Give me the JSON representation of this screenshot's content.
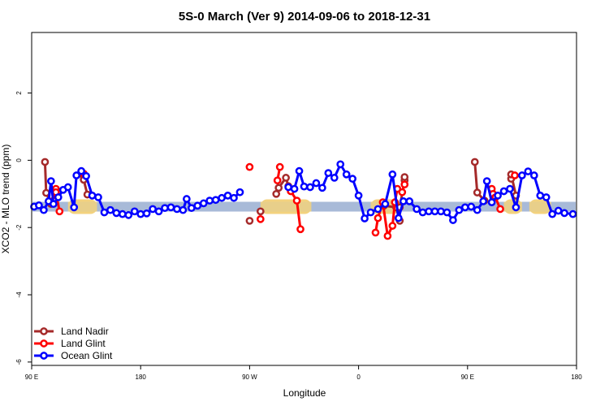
{
  "chart_data": {
    "type": "line",
    "title": "5S-0 March (Ver 9)   2014-09-06 to 2018-12-31",
    "xlabel": "Longitude",
    "ylabel": "XCO2 - MLO trend (ppm)",
    "x_ticks": [
      {
        "value": 90,
        "label": "90 E"
      },
      {
        "value": 180,
        "label": "180"
      },
      {
        "value": 270,
        "label": "90 W"
      },
      {
        "value": 360,
        "label": "0"
      },
      {
        "value": 450,
        "label": "90 E"
      },
      {
        "value": 540,
        "label": "180"
      }
    ],
    "y_ticks": [
      {
        "value": 2,
        "label": "2"
      },
      {
        "value": 0,
        "label": "0"
      },
      {
        "value": -2,
        "label": "-2"
      },
      {
        "value": -4,
        "label": "-4"
      },
      {
        "value": -6,
        "label": "-6"
      }
    ],
    "xlim": [
      90,
      540
    ],
    "ylim": [
      -6.1,
      3.8
    ],
    "grid": false,
    "legend_position": "bottom-left",
    "band": {
      "y": -1.38,
      "color": "#a3b6d6"
    },
    "land_bands": [
      {
        "x": [
          120,
          144
        ],
        "color": "#f3d27e"
      },
      {
        "x": [
          279,
          321
        ],
        "color": "#f3d27e"
      },
      {
        "x": [
          370,
          394
        ],
        "color": "#f3d27e"
      },
      {
        "x": [
          480,
          495
        ],
        "color": "#f3d27e"
      },
      {
        "x": [
          501,
          519
        ],
        "color": "#f3d27e"
      }
    ],
    "series": [
      {
        "name": "Land Nadir",
        "color": "#a52a2a",
        "segments": [
          [
            [
              101,
              -0.05
            ],
            [
              102,
              -0.97
            ],
            [
              106,
              -1.3
            ]
          ],
          [
            [
              133,
              -0.48
            ],
            [
              133,
              -0.58
            ],
            [
              136,
              -1.02
            ]
          ],
          [
            [
              270,
              -1.8
            ]
          ],
          [
            [
              279,
              -1.52
            ]
          ],
          [
            [
              292,
              -1.0
            ],
            [
              294,
              -0.82
            ],
            [
              300,
              -0.52
            ],
            [
              302,
              -0.77
            ]
          ],
          [
            [
              381,
              -1.35
            ],
            [
              391,
              -1.4
            ],
            [
              394,
              -1.8
            ],
            [
              394,
              -1.4
            ],
            [
              398,
              -0.6
            ],
            [
              398,
              -0.5
            ]
          ],
          [
            [
              456,
              -0.05
            ],
            [
              458,
              -0.96
            ],
            [
              464,
              -1.2
            ]
          ],
          [
            [
              486,
              -0.55
            ],
            [
              486,
              -0.42
            ],
            [
              490,
              -1.05
            ]
          ]
        ]
      },
      {
        "name": "Land Glint",
        "color": "#ff0000",
        "segments": [
          [
            [
              108,
              -1.2
            ],
            [
              110,
              -0.85
            ],
            [
              110,
              -0.95
            ],
            [
              113,
              -1.52
            ]
          ],
          [
            [
              133,
              -0.4
            ]
          ],
          [
            [
              270,
              -0.2
            ]
          ],
          [
            [
              279,
              -1.75
            ]
          ],
          [
            [
              293,
              -0.6
            ],
            [
              295,
              -0.2
            ]
          ],
          [
            [
              304,
              -0.92
            ],
            [
              309,
              -1.2
            ],
            [
              312,
              -2.05
            ]
          ],
          [
            [
              374,
              -2.15
            ],
            [
              376,
              -1.72
            ],
            [
              380,
              -1.25
            ],
            [
              384,
              -2.25
            ],
            [
              388,
              -1.95
            ],
            [
              390,
              -1.25
            ],
            [
              392,
              -0.85
            ],
            [
              396,
              -0.95
            ],
            [
              398,
              -0.72
            ]
          ],
          [
            [
              470,
              -0.85
            ],
            [
              471,
              -1.0
            ],
            [
              473,
              -1.1
            ],
            [
              477,
              -1.45
            ]
          ],
          [
            [
              489,
              -0.45
            ]
          ]
        ]
      },
      {
        "name": "Ocean Glint",
        "color": "#0000ff",
        "segments": [
          [
            [
              92,
              -1.38
            ],
            [
              96,
              -1.34
            ],
            [
              100,
              -1.48
            ],
            [
              104,
              -1.22
            ],
            [
              106,
              -0.62
            ],
            [
              108,
              -1.3
            ],
            [
              112,
              -1.1
            ],
            [
              116,
              -0.88
            ],
            [
              120,
              -0.8
            ],
            [
              125,
              -1.4
            ],
            [
              127,
              -0.45
            ],
            [
              131,
              -0.32
            ],
            [
              135,
              -0.47
            ],
            [
              140,
              -1.05
            ],
            [
              145,
              -1.1
            ],
            [
              150,
              -1.55
            ],
            [
              155,
              -1.48
            ],
            [
              160,
              -1.57
            ],
            [
              165,
              -1.6
            ],
            [
              170,
              -1.63
            ],
            [
              175,
              -1.52
            ],
            [
              180,
              -1.6
            ],
            [
              185,
              -1.58
            ],
            [
              190,
              -1.45
            ],
            [
              195,
              -1.52
            ],
            [
              200,
              -1.42
            ],
            [
              205,
              -1.4
            ],
            [
              210,
              -1.45
            ],
            [
              215,
              -1.48
            ],
            [
              218,
              -1.15
            ],
            [
              222,
              -1.42
            ],
            [
              227,
              -1.35
            ],
            [
              232,
              -1.28
            ],
            [
              237,
              -1.2
            ],
            [
              242,
              -1.18
            ],
            [
              247,
              -1.12
            ],
            [
              252,
              -1.05
            ],
            [
              257,
              -1.12
            ],
            [
              262,
              -0.95
            ]
          ],
          [
            [
              302,
              -0.8
            ],
            [
              307,
              -0.85
            ],
            [
              311,
              -0.32
            ],
            [
              315,
              -0.78
            ],
            [
              320,
              -0.8
            ],
            [
              325,
              -0.68
            ],
            [
              330,
              -0.82
            ],
            [
              335,
              -0.38
            ],
            [
              340,
              -0.52
            ],
            [
              345,
              -0.12
            ],
            [
              350,
              -0.42
            ],
            [
              355,
              -0.55
            ],
            [
              360,
              -1.05
            ],
            [
              365,
              -1.73
            ],
            [
              370,
              -1.55
            ],
            [
              376,
              -1.45
            ],
            [
              382,
              -1.3
            ],
            [
              388,
              -0.42
            ],
            [
              393,
              -1.72
            ],
            [
              397,
              -1.22
            ],
            [
              402,
              -1.22
            ],
            [
              408,
              -1.45
            ],
            [
              413,
              -1.55
            ],
            [
              418,
              -1.52
            ],
            [
              423,
              -1.52
            ],
            [
              428,
              -1.52
            ],
            [
              433,
              -1.55
            ],
            [
              438,
              -1.78
            ],
            [
              443,
              -1.48
            ],
            [
              448,
              -1.4
            ],
            [
              453,
              -1.38
            ],
            [
              458,
              -1.48
            ],
            [
              463,
              -1.22
            ],
            [
              466,
              -0.62
            ],
            [
              470,
              -1.25
            ],
            [
              475,
              -1.05
            ],
            [
              480,
              -0.92
            ],
            [
              485,
              -0.85
            ],
            [
              490,
              -1.4
            ],
            [
              495,
              -0.45
            ],
            [
              500,
              -0.33
            ],
            [
              505,
              -0.45
            ],
            [
              510,
              -1.05
            ],
            [
              515,
              -1.1
            ],
            [
              520,
              -1.6
            ],
            [
              525,
              -1.5
            ],
            [
              530,
              -1.57
            ],
            [
              537,
              -1.6
            ]
          ]
        ]
      }
    ]
  }
}
